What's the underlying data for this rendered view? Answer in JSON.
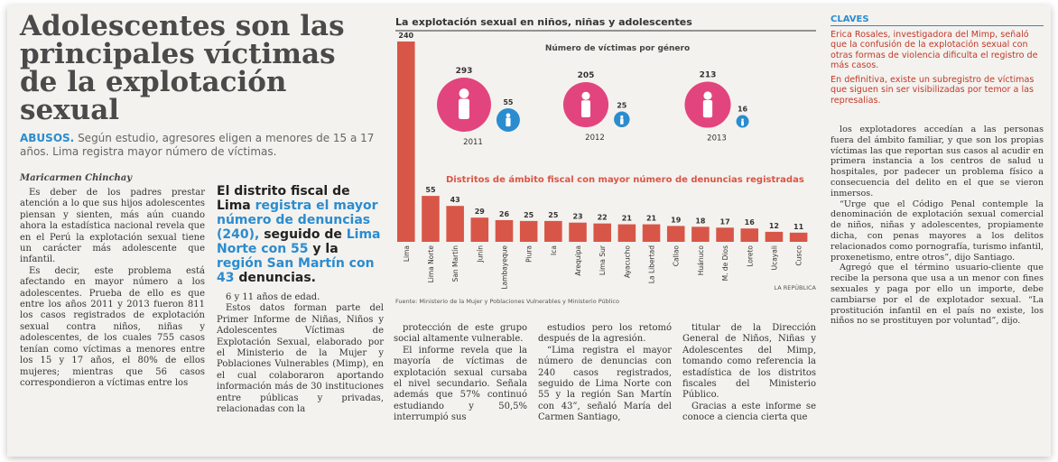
{
  "header": {
    "title": "Adolescentes son las principales víctimas de la explotación sexual",
    "kicker": "ABUSOS.",
    "subtitle": "Según estudio, agresores eligen a menores de 15 a 17 años. Lima registra mayor número de víctimas.",
    "author": "Maricarmen Chinchay"
  },
  "highlight_box": [
    "El distrito fiscal de Lima ",
    "registra el mayor número de denuncias (240),",
    " seguido de ",
    "Lima Norte con 55",
    " y la ",
    "región San Martín con 43",
    " denuncias."
  ],
  "infographic": {
    "title": "La explotación sexual en niños, niñas y adolescentes",
    "gender": {
      "title": "Número de víctimas por género",
      "years": [
        "2011",
        "2012",
        "2013"
      ],
      "female": [
        293,
        205,
        213
      ],
      "male": [
        55,
        25,
        16
      ],
      "female_color": "#e2457e",
      "male_color": "#2b8ccf"
    },
    "source": "Fuente: Ministerio de la Mujer y Poblaciones Vulnerables y Ministerio Público",
    "credit": "LA REPÚBLICA"
  },
  "chart_data": {
    "type": "bar",
    "title": "Distritos de ámbito fiscal con mayor número de denuncias registradas",
    "categories": [
      "Lima",
      "Lima Norte",
      "San Martín",
      "Junín",
      "Lambayeque",
      "Piura",
      "Ica",
      "Arequipa",
      "Lima Sur",
      "Ayacucho",
      "La Libertad",
      "Callao",
      "Huánuco",
      "M. de Dios",
      "Loreto",
      "Ucayali",
      "Cusco"
    ],
    "values": [
      240,
      55,
      43,
      29,
      26,
      25,
      25,
      23,
      22,
      21,
      21,
      19,
      18,
      17,
      16,
      12,
      11
    ],
    "color": "#d85648"
  },
  "claves": {
    "title": "CLAVES",
    "items": [
      "Erica Rosales, investigadora del Mimp, señaló que la confusión de la explotación sexual con otras formas de violencia dificulta el registro de más casos.",
      "En definitiva, existe un subregistro de víctimas que siguen sin ser visibilizadas por temor a las represalias."
    ]
  },
  "body": {
    "columns": [
      [
        "Es deber de los padres prestar atención a lo que sus hijos adolescentes piensan y sienten, más aún cuando ahora la estadística nacional revela que en el Perú la explotación sexual tiene un carácter más adolescente que infantil.",
        "Es decir, este problema está afectando en mayor número a los adolescentes. Prueba de ello es que entre los años 2011 y 2013 fueron 811 los casos registrados de explotación sexual contra niños, niñas y adolescentes, de los cuales 755 casos tenían como víctimas a menores entre los 15 y 17 años, el 80% de ellos mujeres; mientras que 56 casos correspondieron a víctimas entre los"
      ],
      [
        "6 y 11 años de edad.",
        "Estos datos forman parte del Primer Informe de Niñas, Niños y Adolescentes Víctimas de Explotación Sexual, elaborado por el Ministerio de la Mujer y Poblaciones Vulnerables (Mimp), en el cual colaboraron aportando información más de 30 instituciones entre públicas y privadas, relacionadas con la"
      ],
      [
        "protección de este grupo social altamente vulnerable.",
        "El informe revela que la mayoría de víctimas de explotación sexual cursaba el nivel secundario. Señala además que 57% continuó estudiando y 50,5% interrumpió sus"
      ],
      [
        "estudios pero los retomó después de la agresión.",
        "“Lima registra el mayor número de denuncias con 240 casos registrados, seguido de Lima Norte con 55 y la región San Martín con 43”, señaló María del Carmen Santiago,"
      ],
      [
        "titular de la Dirección General de Niños, Niñas y Adolescentes del Mimp, tomando como referencia la estadística de los distritos fiscales del Ministerio Público.",
        "Gracias a este informe se conoce a ciencia cierta que"
      ],
      [
        "los explotadores accedían a las personas fuera del ámbito familiar, y que son los propias víctimas las que reportan sus casos al acudir en primera instancia a los centros de salud u hospitales, por padecer un problema físico a consecuencia del delito en el que se vieron inmersos.",
        "“Urge que el Código Penal contemple la denominación de explotación sexual comercial de niños, niñas y adolescentes, propiamente dicha, con penas mayores a los delitos relacionados como pornografía, turismo infantil, proxenetismo, entre otros”, dijo Santiago.",
        "Agregó que el término usuario-cliente que recibe la persona que usa a un menor con fines sexuales y paga por ello un importe, debe cambiarse por el de explotador sexual. “La prostitución infantil en el país no existe, los niños no se prostituyen por voluntad”, dijo."
      ]
    ]
  }
}
